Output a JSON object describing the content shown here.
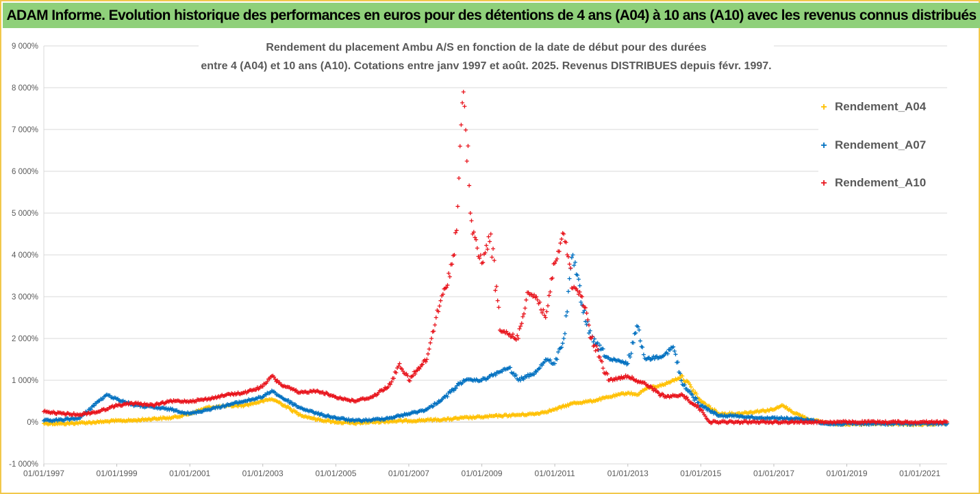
{
  "banner": {
    "title": "ADAM Informe. Evolution historique des performances en euros pour des détentions de 4 ans (A04) à 10 ans (A10) avec les revenus connus distribués"
  },
  "colors": {
    "banner_bg": "#8fd07a",
    "frame": "#f2c84b",
    "a04": "#ffc000",
    "a07": "#0070c0",
    "a10": "#e8141c",
    "grid": "#d9d9d9",
    "text": "#595959"
  },
  "chart_data": {
    "type": "scatter",
    "title_lines": [
      "Rendement du placement Ambu A/S en fonction de la date de début pour des durées",
      "entre 4 (A04) et 10 ans (A10). Cotations entre janv 1997 et août. 2025. Revenus DISTRIBUES depuis févr. 1997."
    ],
    "marker": "plus",
    "xlabel": "",
    "ylabel": "",
    "x_ticks": [
      "01/01/1997",
      "01/01/1999",
      "01/01/2001",
      "01/01/2003",
      "01/01/2005",
      "01/01/2007",
      "01/01/2009",
      "01/01/2011",
      "01/01/2013",
      "01/01/2015",
      "01/01/2017",
      "01/01/2019",
      "01/01/2021"
    ],
    "xlim": [
      "1997-01-01",
      "2021-10-01"
    ],
    "y_ticks": [
      "-1 000%",
      "0%",
      "1 000%",
      "2 000%",
      "3 000%",
      "4 000%",
      "5 000%",
      "6 000%",
      "7 000%",
      "8 000%",
      "9 000%"
    ],
    "ylim": [
      -1000,
      9000
    ],
    "y_unit": "%",
    "grid": "horizontal",
    "legend_position": "right",
    "series": [
      {
        "name": "Rendement_A04",
        "color": "#ffc000",
        "points": [
          [
            "1997-01-01",
            -30
          ],
          [
            "1997-07-01",
            -40
          ],
          [
            "1998-01-01",
            -20
          ],
          [
            "1998-07-01",
            0
          ],
          [
            "1999-01-01",
            30
          ],
          [
            "1999-07-01",
            40
          ],
          [
            "2000-01-01",
            80
          ],
          [
            "2000-07-01",
            100
          ],
          [
            "2001-01-01",
            200
          ],
          [
            "2001-07-01",
            350
          ],
          [
            "2002-01-01",
            380
          ],
          [
            "2002-07-01",
            400
          ],
          [
            "2003-01-01",
            500
          ],
          [
            "2003-04-01",
            550
          ],
          [
            "2003-07-01",
            450
          ],
          [
            "2004-01-01",
            180
          ],
          [
            "2004-07-01",
            60
          ],
          [
            "2005-01-01",
            0
          ],
          [
            "2005-07-01",
            -30
          ],
          [
            "2006-01-01",
            0
          ],
          [
            "2006-07-01",
            20
          ],
          [
            "2007-01-01",
            30
          ],
          [
            "2007-07-01",
            50
          ],
          [
            "2008-01-01",
            60
          ],
          [
            "2008-07-01",
            100
          ],
          [
            "2009-01-01",
            120
          ],
          [
            "2009-07-01",
            150
          ],
          [
            "2010-01-01",
            170
          ],
          [
            "2010-07-01",
            200
          ],
          [
            "2011-01-01",
            300
          ],
          [
            "2011-07-01",
            450
          ],
          [
            "2012-01-01",
            500
          ],
          [
            "2012-07-01",
            600
          ],
          [
            "2013-01-01",
            700
          ],
          [
            "2013-04-01",
            650
          ],
          [
            "2013-07-01",
            800
          ],
          [
            "2014-01-01",
            900
          ],
          [
            "2014-04-01",
            1000
          ],
          [
            "2014-07-01",
            1100
          ],
          [
            "2015-01-01",
            500
          ],
          [
            "2015-07-01",
            200
          ],
          [
            "2016-01-01",
            200
          ],
          [
            "2016-07-01",
            250
          ],
          [
            "2017-01-01",
            300
          ],
          [
            "2017-04-01",
            400
          ],
          [
            "2017-07-01",
            250
          ],
          [
            "2018-01-01",
            50
          ],
          [
            "2018-07-01",
            -30
          ],
          [
            "2019-01-01",
            -50
          ],
          [
            "2019-07-01",
            -50
          ],
          [
            "2020-01-01",
            -40
          ],
          [
            "2020-07-01",
            -50
          ],
          [
            "2021-01-01",
            -60
          ],
          [
            "2021-07-01",
            -40
          ],
          [
            "2021-10-01",
            -40
          ]
        ]
      },
      {
        "name": "Rendement_A07",
        "color": "#0070c0",
        "points": [
          [
            "1997-01-01",
            30
          ],
          [
            "1997-07-01",
            50
          ],
          [
            "1998-01-01",
            100
          ],
          [
            "1998-07-01",
            500
          ],
          [
            "1998-10-01",
            650
          ],
          [
            "1999-01-01",
            550
          ],
          [
            "1999-07-01",
            400
          ],
          [
            "2000-01-01",
            350
          ],
          [
            "2000-07-01",
            300
          ],
          [
            "2001-01-01",
            200
          ],
          [
            "2001-07-01",
            300
          ],
          [
            "2002-01-01",
            400
          ],
          [
            "2002-07-01",
            500
          ],
          [
            "2003-01-01",
            600
          ],
          [
            "2003-04-01",
            750
          ],
          [
            "2003-07-01",
            600
          ],
          [
            "2004-01-01",
            350
          ],
          [
            "2004-07-01",
            200
          ],
          [
            "2005-01-01",
            100
          ],
          [
            "2005-07-01",
            30
          ],
          [
            "2006-01-01",
            50
          ],
          [
            "2006-07-01",
            100
          ],
          [
            "2007-01-01",
            200
          ],
          [
            "2007-07-01",
            300
          ],
          [
            "2008-01-01",
            600
          ],
          [
            "2008-07-01",
            1000
          ],
          [
            "2009-01-01",
            1000
          ],
          [
            "2009-07-01",
            1200
          ],
          [
            "2009-10-01",
            1300
          ],
          [
            "2010-01-01",
            1000
          ],
          [
            "2010-07-01",
            1200
          ],
          [
            "2010-10-01",
            1500
          ],
          [
            "2011-01-01",
            1400
          ],
          [
            "2011-04-01",
            2000
          ],
          [
            "2011-07-01",
            4000
          ],
          [
            "2011-10-01",
            2800
          ],
          [
            "2012-01-01",
            2000
          ],
          [
            "2012-07-01",
            1500
          ],
          [
            "2013-01-01",
            1400
          ],
          [
            "2013-04-01",
            2300
          ],
          [
            "2013-07-01",
            1500
          ],
          [
            "2014-01-01",
            1600
          ],
          [
            "2014-04-01",
            1800
          ],
          [
            "2014-07-01",
            900
          ],
          [
            "2015-01-01",
            400
          ],
          [
            "2015-07-01",
            150
          ],
          [
            "2016-01-01",
            150
          ],
          [
            "2016-07-01",
            100
          ],
          [
            "2017-01-01",
            100
          ],
          [
            "2017-07-01",
            80
          ],
          [
            "2018-01-01",
            50
          ],
          [
            "2018-07-01",
            -50
          ],
          [
            "2019-01-01",
            -40
          ],
          [
            "2020-01-01",
            -40
          ],
          [
            "2021-01-01",
            -40
          ],
          [
            "2021-10-01",
            -40
          ]
        ]
      },
      {
        "name": "Rendement_A10",
        "color": "#e8141c",
        "points": [
          [
            "1997-01-01",
            250
          ],
          [
            "1997-07-01",
            200
          ],
          [
            "1998-01-01",
            180
          ],
          [
            "1998-07-01",
            250
          ],
          [
            "1999-01-01",
            400
          ],
          [
            "1999-07-01",
            450
          ],
          [
            "2000-01-01",
            400
          ],
          [
            "2000-07-01",
            500
          ],
          [
            "2001-01-01",
            500
          ],
          [
            "2001-07-01",
            550
          ],
          [
            "2002-01-01",
            650
          ],
          [
            "2002-07-01",
            700
          ],
          [
            "2003-01-01",
            850
          ],
          [
            "2003-04-01",
            1100
          ],
          [
            "2003-07-01",
            900
          ],
          [
            "2004-01-01",
            700
          ],
          [
            "2004-07-01",
            750
          ],
          [
            "2005-01-01",
            600
          ],
          [
            "2005-07-01",
            500
          ],
          [
            "2006-01-01",
            600
          ],
          [
            "2006-07-01",
            900
          ],
          [
            "2006-10-01",
            1400
          ],
          [
            "2007-01-01",
            1000
          ],
          [
            "2007-07-01",
            1500
          ],
          [
            "2007-10-01",
            2500
          ],
          [
            "2008-01-01",
            3200
          ],
          [
            "2008-04-01",
            4000
          ],
          [
            "2008-07-01",
            7900
          ],
          [
            "2008-10-01",
            4500
          ],
          [
            "2009-01-01",
            3800
          ],
          [
            "2009-04-01",
            4500
          ],
          [
            "2009-07-01",
            2200
          ],
          [
            "2010-01-01",
            2000
          ],
          [
            "2010-04-01",
            3100
          ],
          [
            "2010-07-01",
            3000
          ],
          [
            "2010-10-01",
            2500
          ],
          [
            "2011-01-01",
            3800
          ],
          [
            "2011-04-01",
            4500
          ],
          [
            "2011-07-01",
            3200
          ],
          [
            "2011-10-01",
            3000
          ],
          [
            "2012-01-01",
            2000
          ],
          [
            "2012-07-01",
            1000
          ],
          [
            "2013-01-01",
            1100
          ],
          [
            "2013-07-01",
            900
          ],
          [
            "2014-01-01",
            600
          ],
          [
            "2014-07-01",
            650
          ],
          [
            "2015-01-01",
            300
          ],
          [
            "2015-04-01",
            0
          ],
          [
            "2016-01-01",
            0
          ],
          [
            "2017-01-01",
            0
          ],
          [
            "2018-01-01",
            0
          ],
          [
            "2019-01-01",
            0
          ],
          [
            "2020-01-01",
            0
          ],
          [
            "2021-01-01",
            0
          ],
          [
            "2021-10-01",
            0
          ]
        ]
      }
    ]
  }
}
